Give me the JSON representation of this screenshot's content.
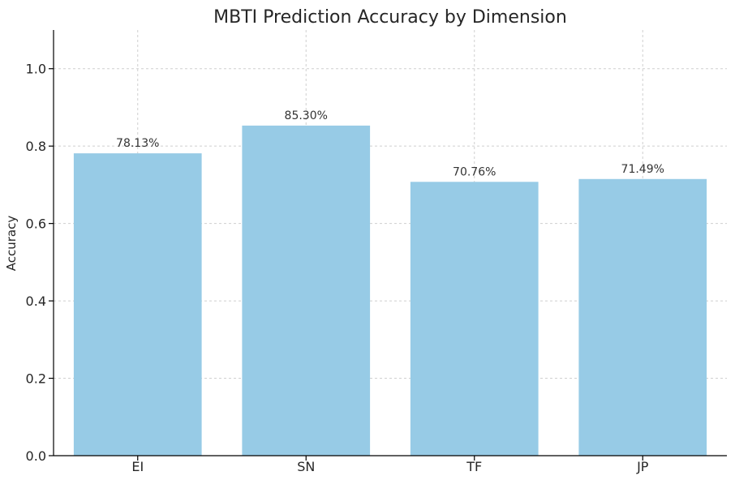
{
  "chart_data": {
    "type": "bar",
    "title": "MBTI Prediction Accuracy by Dimension",
    "xlabel": "",
    "ylabel": "Accuracy",
    "categories": [
      "EI",
      "SN",
      "TF",
      "JP"
    ],
    "values": [
      0.7813,
      0.853,
      0.7076,
      0.7149
    ],
    "data_labels": [
      "78.13%",
      "85.30%",
      "70.76%",
      "71.49%"
    ],
    "ylim": [
      0,
      1.1
    ],
    "yticks": [
      0.0,
      0.2,
      0.4,
      0.6,
      0.8,
      1.0
    ],
    "ytick_labels": [
      "0.0",
      "0.2",
      "0.4",
      "0.6",
      "0.8",
      "1.0"
    ],
    "grid": true,
    "bar_color": "#97cbe6"
  }
}
